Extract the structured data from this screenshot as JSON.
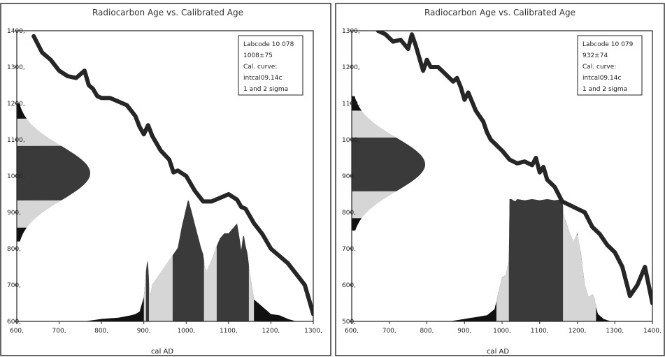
{
  "chart_data": [
    {
      "type": "area",
      "title": "Radiocarbon Age vs. Calibrated Age",
      "xlabel": "cal AD",
      "ylabel": "",
      "xlim": [
        600,
        1300
      ],
      "ylim": [
        600,
        1400
      ],
      "x_ticks": [
        "600,",
        "700,",
        "800,",
        "900,",
        "1000,",
        "1100,",
        "1200,",
        "1300,"
      ],
      "y_ticks": [
        "600,",
        "700,",
        "800,",
        "900,",
        "1000,",
        "1100,",
        "1200,",
        "1300,",
        "1400,"
      ],
      "legend": [
        "Labcode 10 078",
        "1008±75",
        "Cal. curve:",
        "intcal09.14c",
        "1 and 2 sigma"
      ],
      "legend_placement": "top-right",
      "grid": false,
      "calibration_curve": {
        "x": [
          640,
          660,
          680,
          700,
          720,
          740,
          760,
          770,
          780,
          790,
          800,
          820,
          840,
          860,
          880,
          890,
          900,
          910,
          920,
          940,
          960,
          970,
          980,
          1000,
          1020,
          1040,
          1060,
          1070,
          1080,
          1100,
          1120,
          1130,
          1140,
          1160,
          1180,
          1200,
          1220,
          1240,
          1260,
          1280,
          1300
        ],
        "y": [
          1385,
          1340,
          1320,
          1290,
          1275,
          1270,
          1290,
          1250,
          1240,
          1220,
          1215,
          1215,
          1205,
          1195,
          1165,
          1135,
          1115,
          1140,
          1110,
          1070,
          1045,
          1010,
          1015,
          1000,
          960,
          930,
          930,
          935,
          940,
          950,
          935,
          915,
          910,
          870,
          840,
          800,
          780,
          760,
          730,
          700,
          620
        ],
        "thickness": 12
      },
      "radiocarbon_age": {
        "mean": 1008,
        "sigma": 75,
        "two_sigma_range": [
          858,
          1158
        ],
        "tails": [
          [
            1158,
            1200
          ],
          [
            820,
            858
          ]
        ]
      },
      "calibrated_probability": {
        "x": [
          760,
          800,
          840,
          870,
          880,
          890,
          900,
          905,
          908,
          910,
          912,
          915,
          920,
          940,
          960,
          970,
          980,
          990,
          1000,
          1005,
          1020,
          1035,
          1040,
          1045,
          1050,
          1060,
          1070,
          1080,
          1090,
          1100,
          1110,
          1120,
          1125,
          1130,
          1135,
          1140,
          1145,
          1150,
          1160,
          1180,
          1200,
          1220,
          1240,
          1260
        ],
        "y": [
          0,
          0.02,
          0.03,
          0.05,
          0.06,
          0.08,
          0.2,
          0.4,
          0.5,
          0.48,
          0.32,
          0.2,
          0.3,
          0.4,
          0.5,
          0.55,
          0.6,
          0.78,
          0.93,
          1.0,
          0.8,
          0.6,
          0.55,
          0.42,
          0.42,
          0.5,
          0.6,
          0.68,
          0.72,
          0.72,
          0.76,
          0.8,
          0.7,
          0.58,
          0.72,
          0.62,
          0.55,
          0.4,
          0.18,
          0.12,
          0.06,
          0.05,
          0.02,
          0
        ],
        "one_sigma_ranges": [
          [
            968,
            1042
          ],
          [
            1072,
            1148
          ]
        ],
        "two_sigma_ranges": [
          [
            900,
            1160
          ]
        ],
        "spike_1_sigma": [
          [
            905,
            912
          ]
        ]
      }
    },
    {
      "type": "area",
      "title": "Radiocarbon Age vs. Calibrated Age",
      "xlabel": "cal AD",
      "ylabel": "",
      "xlim": [
        600,
        1400
      ],
      "ylim": [
        500,
        1300
      ],
      "x_ticks": [
        "600,",
        "700,",
        "800,",
        "900,",
        "1000,",
        "1100,",
        "1200,",
        "1300,",
        "1400,"
      ],
      "y_ticks": [
        "500,",
        "600,",
        "700,",
        "800,",
        "900,",
        "1000,",
        "1100,",
        "1200,",
        "1300,"
      ],
      "legend": [
        "Labcode 10 079",
        "932±74",
        "Cal. curve:",
        "intcal09.14c",
        "1 and 2 sigma"
      ],
      "legend_placement": "top-right",
      "grid": false,
      "calibration_curve": {
        "x": [
          670,
          690,
          710,
          730,
          750,
          760,
          770,
          790,
          800,
          810,
          830,
          850,
          870,
          880,
          890,
          900,
          910,
          930,
          950,
          960,
          970,
          980,
          1000,
          1020,
          1040,
          1060,
          1080,
          1090,
          1100,
          1110,
          1120,
          1140,
          1160,
          1180,
          1200,
          1220,
          1240,
          1260,
          1280,
          1300,
          1320,
          1340,
          1360,
          1380,
          1400
        ],
        "y": [
          1300,
          1290,
          1270,
          1275,
          1250,
          1290,
          1260,
          1190,
          1220,
          1200,
          1200,
          1180,
          1160,
          1170,
          1145,
          1110,
          1130,
          1080,
          1050,
          1020,
          1000,
          990,
          970,
          945,
          935,
          940,
          930,
          950,
          910,
          925,
          890,
          870,
          830,
          820,
          810,
          800,
          760,
          740,
          710,
          690,
          650,
          570,
          600,
          650,
          550
        ],
        "thickness": 12
      },
      "radiocarbon_age": {
        "mean": 932,
        "sigma": 74,
        "two_sigma_range": [
          784,
          1080
        ],
        "tails": [
          [
            1080,
            1120
          ],
          [
            750,
            784
          ]
        ]
      },
      "calibrated_probability": {
        "x": [
          860,
          900,
          940,
          960,
          980,
          995,
          1000,
          1010,
          1018,
          1020,
          1025,
          1035,
          1040,
          1060,
          1080,
          1100,
          1120,
          1140,
          1160,
          1165,
          1170,
          1180,
          1190,
          1200,
          1210,
          1220,
          1230,
          1240,
          1245,
          1250,
          1255,
          1270,
          1290
        ],
        "y": [
          0,
          0.02,
          0.04,
          0.05,
          0.1,
          0.3,
          0.36,
          0.38,
          0.5,
          1.0,
          1.0,
          0.98,
          1.0,
          0.99,
          1.0,
          0.99,
          1.0,
          0.99,
          1.0,
          0.85,
          0.82,
          0.72,
          0.65,
          0.72,
          0.55,
          0.3,
          0.2,
          0.22,
          0.2,
          0.12,
          0.06,
          0.02,
          0
        ],
        "one_sigma_ranges": [
          [
            1018,
            1162
          ]
        ],
        "two_sigma_ranges": [
          [
            985,
            1250
          ]
        ]
      }
    }
  ],
  "colors": {
    "curve": "#262626",
    "dark_fill": "#3a3a3a",
    "light_fill": "#d6d6d6",
    "black": "#111111",
    "frame": "#222222"
  }
}
